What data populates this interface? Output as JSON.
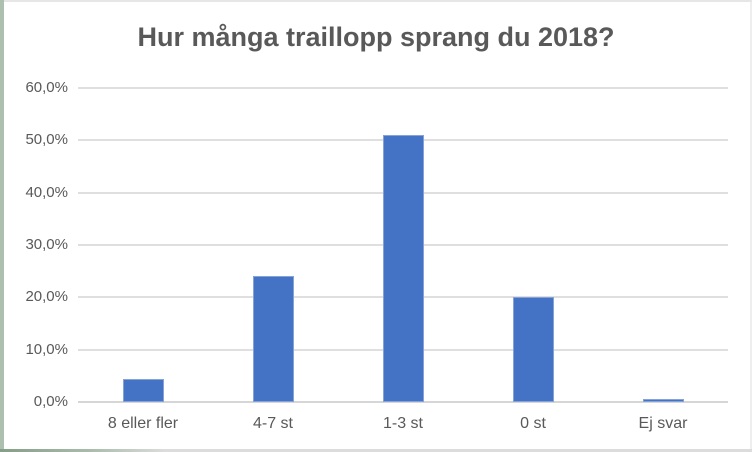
{
  "chart_data": {
    "type": "bar",
    "title": "Hur många traillopp sprang du 2018?",
    "categories": [
      "8 eller fler",
      "4-7 st",
      "1-3 st",
      "0 st",
      "Ej svar"
    ],
    "values": [
      4.3,
      24.0,
      51.0,
      20.0,
      0.5
    ],
    "xlabel": "",
    "ylabel": "",
    "ylim": [
      0,
      60
    ],
    "ytick_step": 10,
    "ytick_labels": [
      "0,0%",
      "10,0%",
      "20,0%",
      "30,0%",
      "40,0%",
      "50,0%",
      "60,0%"
    ],
    "grid": true,
    "legend": false,
    "bar_color": "#4472C4",
    "gridline_color": "#DFDFDF",
    "text_color": "#595959"
  }
}
